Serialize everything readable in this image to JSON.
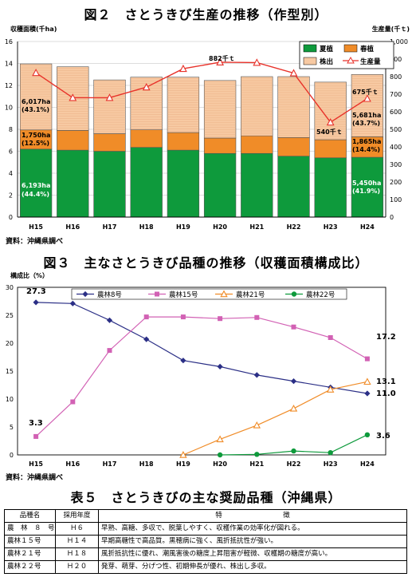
{
  "fig2": {
    "title": "図２　さとうきび生産の推移（作型別）",
    "ylabel_left": "収穫面積(千ha)",
    "ylabel_right": "生産量(千ｔ)",
    "source": "資料：沖縄県調べ",
    "legend": [
      "夏植",
      "春植",
      "株出",
      "生産量"
    ],
    "annotations": [
      {
        "text": "6,017ha",
        "sub": "(43.1%)"
      },
      {
        "text": "1,750ha",
        "sub": "(12.5%)"
      },
      {
        "text": "6,193ha",
        "sub": "(44.4%)"
      },
      {
        "text": "882千ｔ"
      },
      {
        "text": "540千ｔ"
      },
      {
        "text": "675千ｔ"
      },
      {
        "text": "5,681ha",
        "sub": "(43.7%)"
      },
      {
        "text": "1,865ha",
        "sub": "(14.4%)"
      },
      {
        "text": "5,450ha",
        "sub": "(41.9%)"
      }
    ]
  },
  "fig3": {
    "title": "図３　主なさとうきび品種の推移（収穫面積構成比）",
    "ylabel": "構成比（%）",
    "source": "資料：沖縄県調べ",
    "labels": [
      "27.3",
      "3.3",
      "17.2",
      "13.1",
      "11.0",
      "3.6"
    ]
  },
  "table5": {
    "title": "表５　さとうきびの主な奨励品種（沖縄県）",
    "headers": [
      "品種名",
      "採用年度",
      "特　　　　　　　　　徴"
    ],
    "rows": [
      [
        "農　林　８　号",
        "Ｈ６",
        "早熟、高糖、多収で、脱葉しやすく、収穫作業の効率化が図れる。"
      ],
      [
        "農林１５号",
        "Ｈ１４",
        "早期高糖性で高品質。黒穂病に強く、風折抵抗性が強い。"
      ],
      [
        "農林２１号",
        "Ｈ１８",
        "風折抵抗性に優れ、潮風害後の糖度上昇阻害が軽微、収穫期の糖度が高い。"
      ],
      [
        "農林２２号",
        "Ｈ２０",
        "発芽、萌芽、分げつ性、初期伸長が優れ、株出し多収。"
      ]
    ]
  },
  "chart_data": [
    {
      "type": "bar",
      "title": "図２　さとうきび生産の推移（作型別）",
      "stacked": true,
      "categories": [
        "H15",
        "H16",
        "H17",
        "H18",
        "H19",
        "H20",
        "H21",
        "H22",
        "H23",
        "H24"
      ],
      "ylabel": "収穫面積(千ha)",
      "ylim": [
        0,
        16
      ],
      "yticks": [
        0,
        2,
        4,
        6,
        8,
        10,
        12,
        14,
        16
      ],
      "y2label": "生産量(千ｔ)",
      "y2lim": [
        0,
        1000
      ],
      "y2ticks": [
        0,
        100,
        200,
        300,
        400,
        500,
        600,
        700,
        800,
        900,
        1000
      ],
      "series": [
        {
          "name": "夏植",
          "type": "bar",
          "color": "#0e9a3c",
          "values": [
            6.193,
            6.1,
            6.0,
            6.35,
            6.1,
            5.8,
            5.8,
            5.55,
            5.4,
            5.45
          ]
        },
        {
          "name": "春植",
          "type": "bar",
          "color": "#f08c28",
          "values": [
            1.75,
            1.8,
            1.6,
            1.6,
            1.6,
            1.4,
            1.6,
            1.7,
            1.65,
            1.865
          ]
        },
        {
          "name": "株出",
          "type": "bar",
          "color": "#f7c9a2",
          "values": [
            6.017,
            5.8,
            4.9,
            4.8,
            5.05,
            5.25,
            5.4,
            5.55,
            5.25,
            5.681
          ]
        },
        {
          "name": "生産量",
          "type": "line",
          "axis": "right",
          "color": "#e8322a",
          "values": [
            822,
            680,
            680,
            740,
            845,
            882,
            880,
            820,
            540,
            675
          ]
        }
      ],
      "legend_position": "top-right"
    },
    {
      "type": "line",
      "title": "図３　主なさとうきび品種の推移（収穫面積構成比）",
      "categories": [
        "H15",
        "H16",
        "H17",
        "H18",
        "H19",
        "H20",
        "H21",
        "H22",
        "H23",
        "H24"
      ],
      "ylabel": "構成比（%）",
      "ylim": [
        0,
        30
      ],
      "yticks": [
        0,
        5,
        10,
        15,
        20,
        25,
        30
      ],
      "series": [
        {
          "name": "農林8号",
          "color": "#2b2f86",
          "marker": "diamond",
          "values": [
            27.3,
            27.1,
            24.1,
            20.7,
            16.9,
            15.8,
            14.3,
            13.2,
            12.1,
            11.0
          ]
        },
        {
          "name": "農林15号",
          "color": "#d261b4",
          "marker": "square",
          "values": [
            3.3,
            9.5,
            18.7,
            24.7,
            24.7,
            24.4,
            24.6,
            22.9,
            21.0,
            17.2
          ]
        },
        {
          "name": "農林21号",
          "color": "#f08c28",
          "marker": "triangle",
          "values": [
            null,
            null,
            null,
            null,
            0.0,
            2.8,
            5.3,
            8.3,
            11.7,
            13.1
          ]
        },
        {
          "name": "農林22号",
          "color": "#0e9a3c",
          "marker": "circle",
          "values": [
            null,
            null,
            null,
            null,
            null,
            0.0,
            0.1,
            0.7,
            0.4,
            3.6
          ]
        }
      ],
      "legend_position": "top"
    }
  ]
}
